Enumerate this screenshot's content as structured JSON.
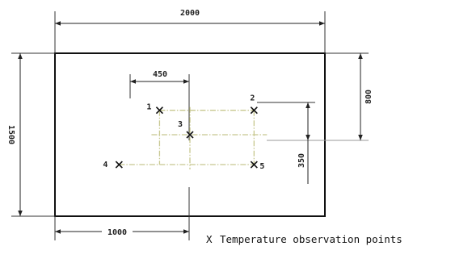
{
  "dimensions": {
    "overall_width": "2000",
    "overall_height": "1500",
    "point_spacing_x": "450",
    "center_offset_y": "800",
    "point_spacing_y": "350",
    "center_offset_x": "1000"
  },
  "points": [
    {
      "label": "1",
      "x": 775,
      "y": 975
    },
    {
      "label": "2",
      "x": 1475,
      "y": 975
    },
    {
      "label": "3",
      "x": 1000,
      "y": 750
    },
    {
      "label": "4",
      "x": 475,
      "y": 475
    },
    {
      "label": "5",
      "x": 1475,
      "y": 475
    }
  ],
  "legend": {
    "symbol": "X",
    "text": "Temperature observation points"
  },
  "colors": {
    "outline": "#111111",
    "dimension_line": "#333333",
    "centerline": "#c8c890"
  }
}
